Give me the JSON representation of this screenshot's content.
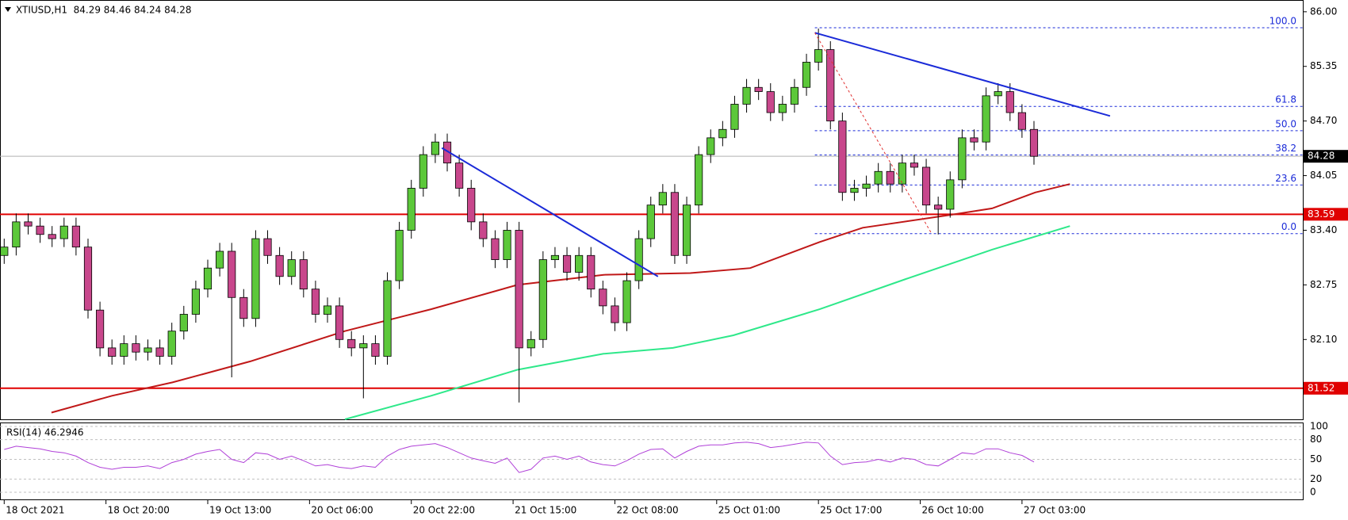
{
  "chart_data": [
    {
      "type": "candlestick",
      "title": "XTIUSD,H1  84.29 84.46 84.24 84.28",
      "x": [
        0,
        2,
        4,
        6,
        8,
        10,
        12,
        14,
        16,
        18,
        20,
        22,
        24,
        26,
        28,
        30,
        32,
        34,
        36,
        38,
        40,
        42,
        44,
        46,
        48,
        50,
        52,
        54,
        56,
        58,
        60,
        62,
        64,
        66,
        68,
        70,
        72,
        74,
        76,
        78,
        80,
        82,
        84,
        86,
        88,
        90,
        92,
        94,
        96,
        98,
        100,
        102,
        104,
        106,
        108,
        110,
        112,
        114,
        116,
        118,
        120,
        122,
        124,
        126,
        128,
        130,
        132,
        134,
        136,
        138,
        140,
        142,
        144,
        146,
        148,
        150,
        152,
        154,
        156,
        158,
        160,
        162,
        164,
        166,
        168,
        170,
        172
      ],
      "open": [
        83.1,
        83.2,
        83.5,
        83.45,
        83.35,
        83.3,
        83.45,
        83.2,
        82.45,
        82.0,
        81.9,
        82.05,
        81.95,
        82.0,
        81.9,
        82.2,
        82.4,
        82.7,
        82.95,
        83.15,
        82.6,
        82.35,
        83.3,
        83.1,
        82.85,
        83.05,
        82.7,
        82.4,
        82.5,
        82.1,
        82.0,
        82.05,
        81.9,
        82.8,
        83.4,
        83.9,
        84.3,
        84.45,
        84.2,
        83.9,
        83.5,
        83.3,
        83.05,
        83.4,
        82.0,
        82.1,
        83.05,
        83.1,
        82.9,
        83.1,
        82.7,
        82.5,
        82.3,
        82.8,
        83.3,
        83.7,
        83.85,
        83.1,
        83.7,
        84.3,
        84.5,
        84.6,
        84.9,
        85.1,
        85.05,
        84.8,
        84.9,
        85.1,
        85.4,
        85.55,
        84.7,
        83.85,
        83.9,
        83.95,
        84.1,
        83.95,
        84.2,
        84.15,
        83.7,
        83.65,
        84.0,
        84.5,
        84.45,
        85.0,
        85.05,
        84.8,
        84.6
      ],
      "high": [
        83.3,
        83.6,
        83.6,
        83.55,
        83.45,
        83.55,
        83.55,
        83.3,
        82.55,
        82.1,
        82.15,
        82.15,
        82.1,
        82.1,
        82.3,
        82.5,
        82.8,
        83.05,
        83.25,
        83.25,
        82.7,
        83.4,
        83.4,
        83.2,
        83.15,
        83.15,
        82.8,
        82.6,
        82.6,
        82.2,
        82.15,
        82.15,
        82.9,
        83.5,
        84.0,
        84.4,
        84.55,
        84.55,
        84.3,
        84.0,
        83.6,
        83.4,
        83.5,
        83.5,
        82.2,
        83.15,
        83.2,
        83.2,
        83.2,
        83.2,
        82.8,
        82.6,
        82.9,
        83.4,
        83.8,
        83.95,
        83.95,
        83.8,
        84.4,
        84.6,
        84.7,
        85.0,
        85.2,
        85.2,
        85.15,
        85.0,
        85.2,
        85.5,
        85.8,
        85.65,
        84.8,
        84.0,
        84.05,
        84.2,
        84.2,
        84.3,
        84.3,
        84.25,
        83.8,
        84.1,
        84.6,
        84.6,
        85.1,
        85.15,
        85.15,
        84.9,
        84.7
      ],
      "low": [
        83.0,
        83.1,
        83.35,
        83.25,
        83.2,
        83.2,
        83.1,
        82.35,
        81.9,
        81.8,
        81.8,
        81.85,
        81.85,
        81.8,
        81.8,
        82.1,
        82.3,
        82.6,
        82.85,
        81.65,
        82.25,
        82.25,
        83.0,
        82.75,
        82.75,
        82.6,
        82.3,
        82.3,
        82.0,
        81.9,
        81.4,
        81.8,
        81.8,
        82.7,
        83.3,
        83.8,
        84.2,
        84.1,
        83.8,
        83.4,
        83.2,
        82.95,
        82.95,
        81.35,
        81.9,
        82.0,
        82.95,
        82.8,
        82.8,
        82.6,
        82.4,
        82.2,
        82.2,
        82.7,
        83.2,
        83.6,
        83.0,
        83.0,
        83.6,
        84.2,
        84.4,
        84.5,
        84.8,
        84.95,
        84.7,
        84.7,
        84.8,
        85.0,
        85.3,
        84.6,
        83.75,
        83.75,
        83.8,
        83.85,
        83.85,
        83.85,
        84.05,
        83.6,
        83.35,
        83.55,
        83.9,
        84.35,
        84.35,
        84.9,
        84.7,
        84.5,
        84.18
      ],
      "close": [
        83.2,
        83.5,
        83.45,
        83.35,
        83.3,
        83.45,
        83.2,
        82.45,
        82.0,
        81.9,
        82.05,
        81.95,
        82.0,
        81.9,
        82.2,
        82.4,
        82.7,
        82.95,
        83.15,
        82.6,
        82.35,
        83.3,
        83.1,
        82.85,
        83.05,
        82.7,
        82.4,
        82.5,
        82.1,
        82.0,
        82.05,
        81.9,
        82.8,
        83.4,
        83.9,
        84.3,
        84.45,
        84.2,
        83.9,
        83.5,
        83.3,
        83.05,
        83.4,
        82.0,
        82.1,
        83.05,
        83.1,
        82.9,
        83.1,
        82.7,
        82.5,
        82.3,
        82.8,
        83.3,
        83.7,
        83.85,
        83.1,
        83.7,
        84.3,
        84.5,
        84.6,
        84.9,
        85.1,
        85.05,
        84.8,
        84.9,
        85.1,
        85.4,
        85.55,
        84.7,
        83.85,
        83.9,
        83.95,
        84.1,
        83.95,
        84.2,
        84.15,
        83.7,
        83.65,
        84.0,
        84.5,
        84.45,
        85.0,
        85.05,
        84.8,
        84.6,
        84.28
      ],
      "up_color": "#5cc83a",
      "down_color": "#c8478c",
      "xlim": [
        -0.7,
        216.9
      ],
      "xticks": [
        {
          "value": 0,
          "label": "18 Oct 2021"
        },
        {
          "value": 17,
          "label": "18 Oct 20:00"
        },
        {
          "value": 34,
          "label": "19 Oct 13:00"
        },
        {
          "value": 51,
          "label": "20 Oct 06:00"
        },
        {
          "value": 68,
          "label": "20 Oct 22:00"
        },
        {
          "value": 85,
          "label": "21 Oct 15:00"
        },
        {
          "value": 102,
          "label": "22 Oct 08:00"
        },
        {
          "value": 119,
          "label": "25 Oct 01:00"
        },
        {
          "value": 136,
          "label": "25 Oct 17:00"
        },
        {
          "value": 153,
          "label": "26 Oct 10:00"
        },
        {
          "value": 170,
          "label": "27 Oct 03:00"
        }
      ],
      "ylim": [
        81.15,
        86.14
      ],
      "yticks": [
        {
          "value": 86,
          "label": "86.00"
        },
        85.35,
        {
          "value": 84.7,
          "label": "84.70"
        },
        84.05,
        {
          "value": 83.4,
          "label": "83.40"
        },
        82.75,
        {
          "value": 82.1,
          "label": "82.10"
        }
      ],
      "series": [
        {
          "color": "#c01818",
          "x": [
            7.9,
            18.0,
            28.1,
            41.1,
            56.9,
            71.3,
            85.7,
            100.1,
            114.6,
            124.6,
            136.2,
            143.4,
            157.8,
            165.0,
            172.2,
            178.0
          ],
          "values": [
            81.23,
            81.43,
            81.59,
            81.84,
            82.2,
            82.46,
            82.75,
            82.87,
            82.89,
            82.95,
            83.26,
            83.43,
            83.58,
            83.66,
            83.85,
            83.95
          ]
        },
        {
          "color": "#2ee88a",
          "x": [
            56.9,
            71.3,
            85.7,
            100.1,
            111.7,
            121.8,
            136.2,
            150.6,
            165.0,
            178.0
          ],
          "values": [
            81.15,
            81.43,
            81.74,
            81.93,
            82.0,
            82.15,
            82.46,
            82.82,
            83.17,
            83.45
          ]
        }
      ],
      "levels": [
        {
          "value": 84.28,
          "color": "#b0b0b0",
          "box": "#000000"
        },
        {
          "value": 83.59,
          "color": "#e00000",
          "box": "#e00000"
        },
        {
          "value": 81.52,
          "color": "#e00000",
          "box": "#e00000"
        }
      ],
      "trendlines": [
        {
          "color": "#1a2ad8",
          "dashed": false,
          "x": [
            73.1,
            109.2
          ],
          "values": [
            84.38,
            82.85
          ]
        },
        {
          "color": "#1a2ad8",
          "dashed": false,
          "x": [
            135.4,
            184.7
          ],
          "values": [
            85.75,
            84.76
          ]
        },
        {
          "color": "#e03030",
          "dashed": true,
          "x": [
            135.4,
            154.9
          ],
          "values": [
            85.75,
            83.36
          ]
        }
      ],
      "fibonacci": {
        "color": "#1a2ad8",
        "start": 135.4,
        "high": 85.81,
        "low": 83.36,
        "levels": [
          {
            "value": 100,
            "label": "100.0"
          },
          61.8,
          {
            "value": 50,
            "label": "50.0"
          },
          38.2,
          23.6,
          {
            "value": 0,
            "label": "0.0"
          }
        ]
      }
    },
    {
      "type": "line",
      "title": "RSI(14) 46.2946",
      "color": "#b040d8",
      "values": [
        65,
        70,
        68,
        66,
        62,
        60,
        55,
        45,
        38,
        35,
        38,
        38,
        40,
        36,
        45,
        50,
        58,
        62,
        65,
        50,
        45,
        60,
        58,
        50,
        55,
        48,
        40,
        42,
        38,
        36,
        40,
        38,
        55,
        65,
        70,
        72,
        74,
        68,
        60,
        52,
        48,
        44,
        52,
        30,
        35,
        52,
        55,
        50,
        55,
        46,
        42,
        40,
        48,
        58,
        65,
        66,
        52,
        62,
        70,
        72,
        72,
        75,
        76,
        74,
        68,
        70,
        73,
        76,
        75,
        55,
        42,
        45,
        46,
        50,
        46,
        52,
        50,
        42,
        40,
        50,
        60,
        58,
        66,
        66,
        60,
        56,
        46
      ],
      "ylim": [
        0,
        100
      ],
      "yticks": [
        100,
        80,
        50,
        20,
        0
      ],
      "grid": true
    }
  ]
}
